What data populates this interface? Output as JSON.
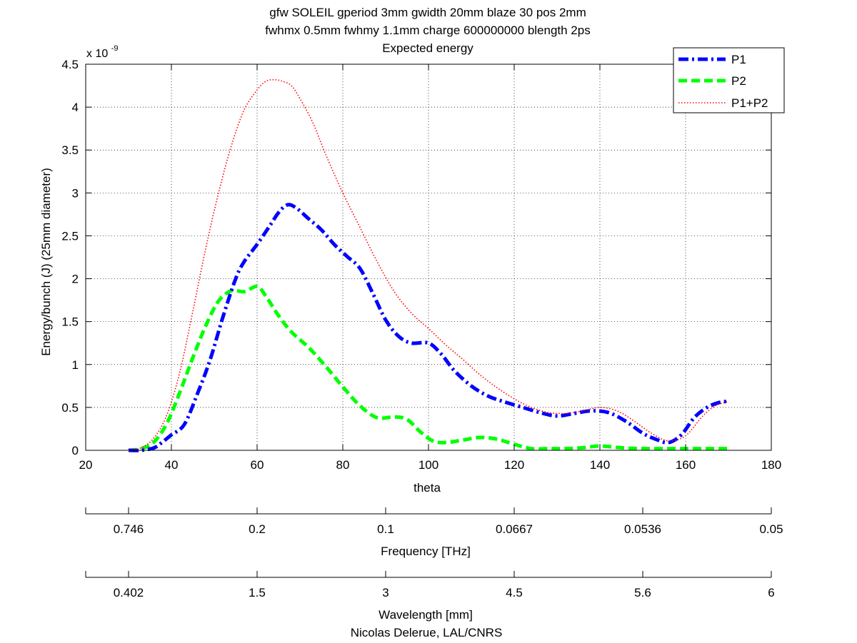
{
  "chart_data": {
    "type": "line",
    "title_lines": [
      "gfw SOLEIL gperiod 3mm gwidth 20mm blaze 30 pos 2mm",
      "fwhmx 0.5mm fwhmy 1.1mm charge 600000000 blength 2ps",
      "Expected energy"
    ],
    "xlabel": "theta",
    "ylabel": "Energy/bunch (J)  (25mm diameter)",
    "y_exponent_label": "x 10",
    "y_exponent_power": "-9",
    "xlim": [
      20,
      180
    ],
    "ylim": [
      0,
      4.5
    ],
    "x_ticks": [
      20,
      40,
      60,
      80,
      100,
      120,
      140,
      160,
      180
    ],
    "y_ticks": [
      0,
      0.5,
      1,
      1.5,
      2,
      2.5,
      3,
      3.5,
      4,
      4.5
    ],
    "x_tick_labels": [
      "20",
      "40",
      "60",
      "80",
      "100",
      "120",
      "140",
      "160",
      "180"
    ],
    "y_tick_labels": [
      "0",
      "0.5",
      "1",
      "1.5",
      "2",
      "2.5",
      "3",
      "3.5",
      "4",
      "4.5"
    ],
    "grid": true,
    "legend_position": "top-right",
    "series": [
      {
        "name": "P1",
        "color": "#0000ff",
        "style": "dashdot",
        "x": [
          30,
          33,
          36,
          38,
          40,
          43,
          46,
          49,
          52,
          55,
          57,
          60,
          63,
          65,
          67,
          69,
          72,
          75,
          78,
          81,
          84,
          87,
          90,
          93,
          96,
          100,
          103,
          106,
          110,
          114,
          118,
          122,
          126,
          130,
          134,
          138,
          142,
          146,
          150,
          153,
          156,
          159,
          162,
          165,
          168,
          170
        ],
        "values": [
          0.0,
          0.0,
          0.03,
          0.1,
          0.18,
          0.3,
          0.65,
          1.05,
          1.55,
          2.0,
          2.2,
          2.4,
          2.62,
          2.77,
          2.86,
          2.83,
          2.7,
          2.57,
          2.4,
          2.26,
          2.12,
          1.83,
          1.52,
          1.33,
          1.25,
          1.25,
          1.12,
          0.93,
          0.75,
          0.63,
          0.56,
          0.5,
          0.44,
          0.4,
          0.43,
          0.46,
          0.44,
          0.34,
          0.2,
          0.13,
          0.09,
          0.18,
          0.38,
          0.5,
          0.56,
          0.57
        ]
      },
      {
        "name": "P2",
        "color": "#00ff00",
        "style": "dashed",
        "x": [
          30,
          33,
          36,
          39,
          42,
          45,
          48,
          51,
          54,
          57,
          60,
          62,
          65,
          68,
          72,
          76,
          80,
          84,
          88,
          92,
          95,
          98,
          101,
          104,
          108,
          112,
          116,
          120,
          124,
          128,
          132,
          136,
          140,
          145,
          150,
          160,
          170
        ],
        "values": [
          0.0,
          0.02,
          0.1,
          0.32,
          0.68,
          1.08,
          1.45,
          1.74,
          1.86,
          1.85,
          1.91,
          1.8,
          1.57,
          1.38,
          1.2,
          0.98,
          0.74,
          0.52,
          0.38,
          0.39,
          0.36,
          0.22,
          0.11,
          0.09,
          0.12,
          0.15,
          0.13,
          0.07,
          0.02,
          0.02,
          0.02,
          0.03,
          0.05,
          0.03,
          0.02,
          0.02,
          0.02
        ]
      },
      {
        "name": "P1+P2",
        "color": "#ff0000",
        "style": "dotted",
        "x": [
          30,
          33,
          36,
          39,
          42,
          45,
          48,
          51,
          54,
          57,
          60,
          62,
          64,
          66,
          68,
          70,
          73,
          76,
          80,
          84,
          88,
          92,
          96,
          100,
          104,
          108,
          112,
          116,
          120,
          124,
          128,
          132,
          136,
          140,
          144,
          148,
          152,
          156,
          160,
          164,
          167,
          170
        ],
        "values": [
          0.0,
          0.03,
          0.15,
          0.42,
          0.92,
          1.62,
          2.35,
          3.0,
          3.55,
          3.97,
          4.2,
          4.3,
          4.32,
          4.3,
          4.25,
          4.1,
          3.82,
          3.45,
          3.0,
          2.6,
          2.2,
          1.85,
          1.6,
          1.42,
          1.23,
          1.06,
          0.88,
          0.73,
          0.6,
          0.5,
          0.44,
          0.43,
          0.46,
          0.5,
          0.46,
          0.34,
          0.2,
          0.11,
          0.17,
          0.4,
          0.52,
          0.57
        ]
      }
    ],
    "secondary_axes": [
      {
        "label": "Frequency [THz]",
        "tick_positions_theta": [
          30,
          60,
          90,
          120,
          150,
          180
        ],
        "tick_labels": [
          "0.746",
          "0.2",
          "0.1",
          "0.0667",
          "0.0536",
          "0.05"
        ]
      },
      {
        "label": "Wavelength [mm]",
        "tick_positions_theta": [
          30,
          60,
          90,
          120,
          150,
          180
        ],
        "tick_labels": [
          "0.402",
          "1.5",
          "3",
          "4.5",
          "5.6",
          "6"
        ]
      }
    ],
    "footer": "Nicolas Delerue, LAL/CNRS"
  }
}
